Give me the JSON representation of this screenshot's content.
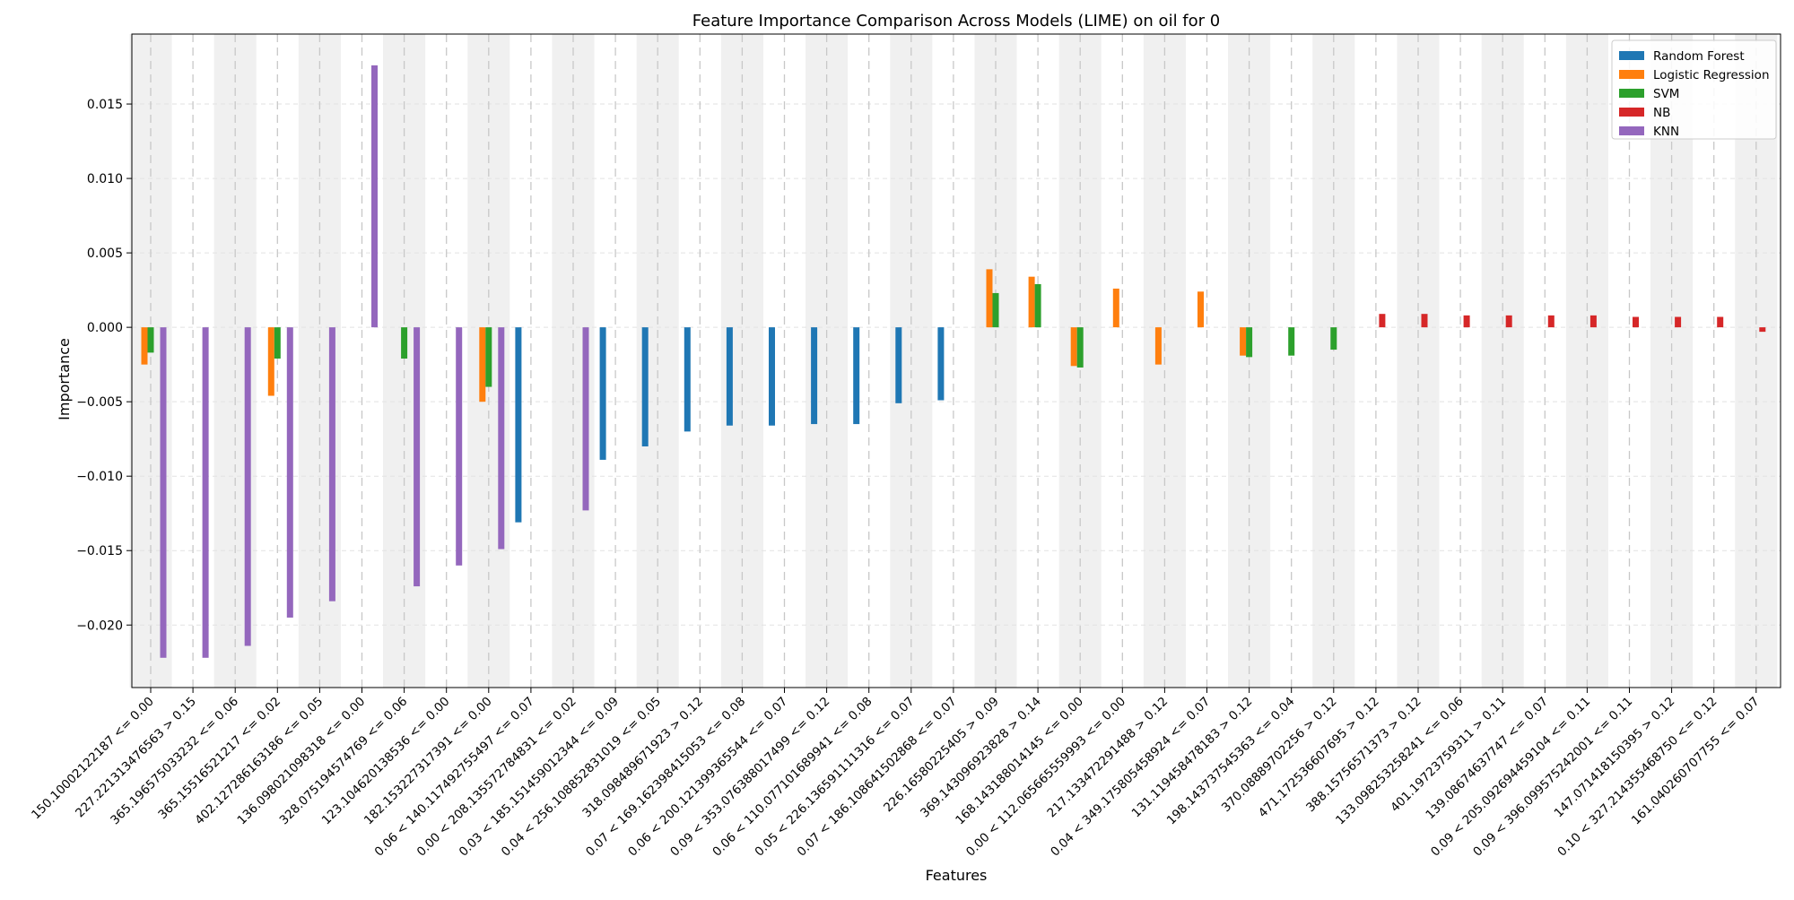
{
  "chart_data": {
    "type": "bar",
    "title": "Feature Importance Comparison Across Models (LIME) on oil for 0",
    "xlabel": "Features",
    "ylabel": "Importance",
    "ylim": [
      -0.0242,
      0.0197
    ],
    "yticks": [
      -0.02,
      -0.015,
      -0.01,
      -0.005,
      0.0,
      0.005,
      0.01,
      0.015
    ],
    "ytick_labels": [
      "−0.020",
      "−0.015",
      "−0.010",
      "−0.005",
      "0.000",
      "0.005",
      "0.010",
      "0.015"
    ],
    "grid": true,
    "alternating_band_shading": true,
    "legend_position": "top-right",
    "categories": [
      "150.10002122187 <= 0.00",
      "227.22131347656​3 > 0.15",
      "365.19657503323​2 <= 0.06",
      "365.15516521217 <= 0.02",
      "402.12728616318​6 <= 0.05",
      "136.09802109831​8 <= 0.00",
      "328.07519457476​9 <= 0.06",
      "123.10462013853​6 <= 0.00",
      "182.15322731739​1 <= 0.00",
      "0.06 < 140.117492755497 <= 0.07",
      "0.00 < 208.135572784831 <= 0.02",
      "0.03 < 185.151459012344 <= 0.09",
      "0.04 < 256.108852831019 <= 0.05",
      "318.09848967192​3 > 0.12",
      "0.07 < 169.162398415053 <= 0.08",
      "0.06 < 200.121399365544 <= 0.07",
      "0.09 < 353.076388017499 <= 0.12",
      "0.06 < 110.077101689941 <= 0.08",
      "0.05 < 226.136591111316 <= 0.07",
      "0.07 < 186.108641502868 <= 0.07",
      "226.16580225405 > 0.09",
      "369.14309692382​8 > 0.14",
      "168.14318801414​5 <= 0.00",
      "0.00 < 112.065665559993 <= 0.00",
      "217.13347229148​8 > 0.12",
      "0.04 < 349.175805458924 <= 0.07",
      "131.11945847818​3 > 0.12",
      "198.14373754536​3 <= 0.04",
      "370.08889702256 > 0.12",
      "471.17253660769​5 > 0.12",
      "388.15756571373 > 0.12",
      "133.09825325824​1 <= 0.06",
      "401.19723759311 > 0.11",
      "139.08674637747 <= 0.07",
      "0.09 < 205.092694459104 <= 0.11",
      "0.09 < 396.099575242001 <= 0.11",
      "147.07141815039​5 > 0.12",
      "0.10 < 327.214355468750 <= 0.12",
      "161.04026070775​5 <= 0.07"
    ],
    "series": [
      {
        "name": "Random Forest",
        "color": "#1f77b4",
        "values": [
          0,
          0,
          0,
          0,
          0,
          0,
          0,
          0,
          0,
          -0.0131,
          0,
          -0.0089,
          -0.008,
          -0.007,
          -0.0066,
          -0.0066,
          -0.0065,
          -0.0065,
          -0.0051,
          -0.0049,
          0,
          0,
          0,
          0,
          0,
          0,
          0,
          0,
          0,
          0,
          0,
          0,
          0,
          0,
          0,
          0,
          0,
          0,
          0
        ]
      },
      {
        "name": "Logistic Regression",
        "color": "#ff7f0e",
        "values": [
          -0.0025,
          0,
          0,
          -0.0046,
          0,
          0,
          0,
          0,
          -0.005,
          0,
          0,
          0,
          0,
          0,
          0,
          0,
          0,
          0,
          0,
          0,
          0.0039,
          0.0034,
          -0.0026,
          0.0026,
          -0.0025,
          0.0024,
          -0.0019,
          0,
          0,
          0,
          0,
          0,
          0,
          0,
          0,
          0,
          0,
          0,
          0
        ]
      },
      {
        "name": "SVM",
        "color": "#2ca02c",
        "values": [
          -0.0017,
          0,
          0,
          -0.0021,
          0,
          0,
          -0.0021,
          0,
          -0.004,
          0,
          0,
          0,
          0,
          0,
          0,
          0,
          0,
          0,
          0,
          0,
          0.0023,
          0.0029,
          -0.0027,
          0,
          0,
          0,
          -0.002,
          -0.0019,
          -0.0015,
          0,
          0,
          0,
          0,
          0,
          0,
          0,
          0,
          0,
          0
        ]
      },
      {
        "name": "NB",
        "color": "#d62728",
        "values": [
          0,
          0,
          0,
          0,
          0,
          0,
          0,
          0,
          0,
          0,
          0,
          0,
          0,
          0,
          0,
          0,
          0,
          0,
          0,
          0,
          0,
          0,
          0,
          0,
          0,
          0,
          0,
          0,
          0,
          0.0009,
          0.0009,
          0.0008,
          0.0008,
          0.0008,
          0.0008,
          0.0007,
          0.0007,
          0.0007,
          -0.0003
        ]
      },
      {
        "name": "KNN",
        "color": "#9467bd",
        "values": [
          -0.0222,
          -0.0222,
          -0.0214,
          -0.0195,
          -0.0184,
          0.0176,
          -0.0174,
          -0.016,
          -0.0149,
          0,
          -0.0123,
          0,
          0,
          0,
          0,
          0,
          0,
          0,
          0,
          0,
          0,
          0,
          0,
          0,
          0,
          0,
          0,
          0,
          0,
          0,
          0,
          0,
          0,
          0,
          0,
          0,
          0,
          0,
          0
        ]
      }
    ]
  }
}
